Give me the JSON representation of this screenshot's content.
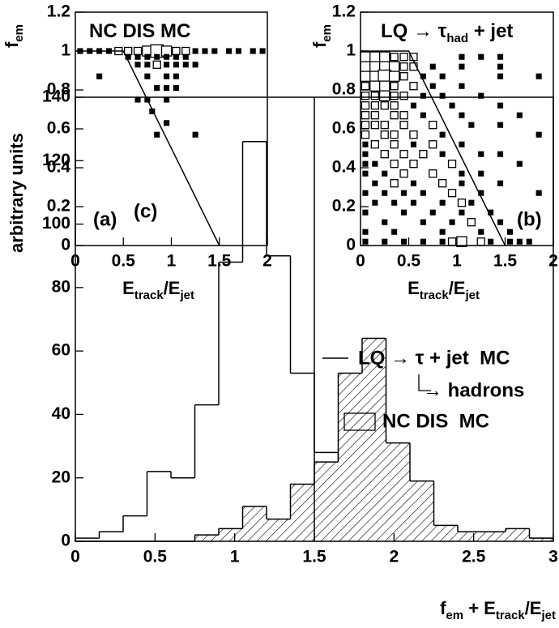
{
  "chart_data": [
    {
      "type": "box2d",
      "title": [
        {
          "text": "NC DIS MC"
        }
      ],
      "panel_label": "(a)",
      "xlabel": [
        {
          "text": "E"
        },
        {
          "text": "track",
          "sub": true
        },
        {
          "text": "/E"
        },
        {
          "text": "jet",
          "sub": true
        }
      ],
      "ylabel": [
        {
          "text": "f"
        },
        {
          "text": "em",
          "sub": true
        }
      ],
      "xlim": [
        0,
        2
      ],
      "ylim": [
        0,
        1.2
      ],
      "xticks": [
        0,
        0.5,
        1,
        1.5,
        2
      ],
      "yticks": [
        0,
        0.2,
        0.4,
        0.6,
        0.8,
        1,
        1.2
      ],
      "color": "#000000",
      "points": [
        [
          0.05,
          1,
          1
        ],
        [
          0.15,
          1,
          1
        ],
        [
          0.25,
          1,
          1
        ],
        [
          0.35,
          1,
          1
        ],
        [
          0.45,
          1,
          2
        ],
        [
          0.55,
          1,
          2
        ],
        [
          0.65,
          1,
          2
        ],
        [
          0.75,
          1,
          3
        ],
        [
          0.85,
          1,
          4
        ],
        [
          0.95,
          1,
          3
        ],
        [
          1.05,
          1,
          2
        ],
        [
          1.15,
          1,
          2
        ],
        [
          1.25,
          1,
          1
        ],
        [
          1.35,
          1,
          1
        ],
        [
          1.45,
          1,
          1
        ],
        [
          1.6,
          1,
          1
        ],
        [
          1.7,
          1,
          1
        ],
        [
          1.85,
          1,
          1
        ],
        [
          1.95,
          1,
          1
        ],
        [
          0.55,
          0.97,
          1
        ],
        [
          0.65,
          0.97,
          1
        ],
        [
          0.75,
          0.97,
          1
        ],
        [
          0.85,
          0.97,
          1
        ],
        [
          0.95,
          0.97,
          1
        ],
        [
          1.05,
          0.97,
          1
        ],
        [
          1.15,
          0.97,
          1
        ],
        [
          0.65,
          0.93,
          1
        ],
        [
          0.75,
          0.93,
          1
        ],
        [
          0.85,
          0.93,
          2
        ],
        [
          0.95,
          0.93,
          1
        ],
        [
          1.05,
          0.93,
          1
        ],
        [
          1.15,
          0.93,
          1
        ],
        [
          1.25,
          0.93,
          1
        ],
        [
          0.25,
          0.87,
          1
        ],
        [
          0.75,
          0.87,
          1
        ],
        [
          0.95,
          0.87,
          1
        ],
        [
          1.05,
          0.87,
          1
        ],
        [
          0.85,
          0.81,
          1
        ],
        [
          0.95,
          0.81,
          1
        ],
        [
          1.05,
          0.81,
          1
        ],
        [
          0.65,
          0.75,
          1
        ],
        [
          0.75,
          0.75,
          1
        ],
        [
          0.95,
          0.75,
          1
        ],
        [
          0.8,
          0.69,
          1
        ],
        [
          0.95,
          0.63,
          1
        ],
        [
          0.85,
          0.57,
          1
        ],
        [
          1.25,
          0.57,
          1
        ]
      ],
      "cut_line": {
        "x": [
          0,
          0.5,
          1.5
        ],
        "y": [
          1,
          1,
          0
        ]
      }
    },
    {
      "type": "box2d",
      "title": [
        {
          "text": "LQ → τ"
        },
        {
          "text": "had",
          "sub": true
        },
        {
          "text": " + jet"
        }
      ],
      "panel_label": "(b)",
      "xlabel": [
        {
          "text": "E"
        },
        {
          "text": "track",
          "sub": true
        },
        {
          "text": "/E"
        },
        {
          "text": "jet",
          "sub": true
        }
      ],
      "ylabel": [
        {
          "text": "f"
        },
        {
          "text": "em",
          "sub": true
        }
      ],
      "xlim": [
        0,
        2
      ],
      "ylim": [
        0,
        1.2
      ],
      "xticks": [
        0,
        0.5,
        1,
        1.5,
        2
      ],
      "yticks": [
        0,
        0.2,
        0.4,
        0.6,
        0.8,
        1,
        1.2
      ],
      "color": "#000000",
      "points": [
        [
          0.05,
          0.97,
          3
        ],
        [
          0.15,
          0.97,
          3
        ],
        [
          0.25,
          0.97,
          3
        ],
        [
          0.35,
          0.97,
          2
        ],
        [
          0.45,
          0.97,
          2
        ],
        [
          0.55,
          0.97,
          2
        ],
        [
          1.05,
          0.97,
          1
        ],
        [
          1.25,
          0.97,
          1
        ],
        [
          1.45,
          0.97,
          1
        ],
        [
          0.05,
          0.92,
          3
        ],
        [
          0.15,
          0.92,
          3
        ],
        [
          0.25,
          0.92,
          3
        ],
        [
          0.35,
          0.92,
          3
        ],
        [
          0.45,
          0.92,
          2
        ],
        [
          0.55,
          0.92,
          2
        ],
        [
          0.75,
          0.92,
          1
        ],
        [
          1.05,
          0.92,
          1
        ],
        [
          1.45,
          0.92,
          1
        ],
        [
          0.05,
          0.87,
          3
        ],
        [
          0.15,
          0.87,
          3
        ],
        [
          0.25,
          0.87,
          4
        ],
        [
          0.35,
          0.87,
          3
        ],
        [
          0.45,
          0.87,
          2
        ],
        [
          0.65,
          0.87,
          1
        ],
        [
          0.85,
          0.87,
          1
        ],
        [
          1.45,
          0.87,
          1
        ],
        [
          1.85,
          0.87,
          1
        ],
        [
          0.05,
          0.82,
          2
        ],
        [
          0.15,
          0.82,
          3
        ],
        [
          0.25,
          0.82,
          3
        ],
        [
          0.35,
          0.82,
          2
        ],
        [
          0.55,
          0.82,
          2
        ],
        [
          0.75,
          0.82,
          1
        ],
        [
          1.05,
          0.82,
          1
        ],
        [
          0.05,
          0.77,
          2
        ],
        [
          0.15,
          0.77,
          2
        ],
        [
          0.25,
          0.77,
          3
        ],
        [
          0.35,
          0.77,
          2
        ],
        [
          0.45,
          0.77,
          2
        ],
        [
          0.65,
          0.77,
          1
        ],
        [
          0.85,
          0.77,
          1
        ],
        [
          1.25,
          0.77,
          1
        ],
        [
          0.05,
          0.72,
          2
        ],
        [
          0.15,
          0.72,
          2
        ],
        [
          0.25,
          0.72,
          2
        ],
        [
          0.35,
          0.72,
          2
        ],
        [
          0.55,
          0.72,
          1
        ],
        [
          0.95,
          0.72,
          1
        ],
        [
          1.45,
          0.72,
          1
        ],
        [
          0.05,
          0.67,
          2
        ],
        [
          0.15,
          0.67,
          2
        ],
        [
          0.35,
          0.67,
          2
        ],
        [
          0.45,
          0.67,
          2
        ],
        [
          0.65,
          0.67,
          1
        ],
        [
          1.05,
          0.67,
          1
        ],
        [
          1.65,
          0.67,
          1
        ],
        [
          0.05,
          0.62,
          2
        ],
        [
          0.15,
          0.62,
          2
        ],
        [
          0.25,
          0.62,
          2
        ],
        [
          0.45,
          0.62,
          2
        ],
        [
          0.75,
          0.62,
          2
        ],
        [
          1.15,
          0.62,
          1
        ],
        [
          1.45,
          0.62,
          1
        ],
        [
          0.05,
          0.57,
          2
        ],
        [
          0.25,
          0.57,
          2
        ],
        [
          0.35,
          0.57,
          2
        ],
        [
          0.55,
          0.57,
          2
        ],
        [
          0.85,
          0.57,
          1
        ],
        [
          1.85,
          0.57,
          1
        ],
        [
          0.05,
          0.52,
          1
        ],
        [
          0.15,
          0.52,
          2
        ],
        [
          0.35,
          0.52,
          2
        ],
        [
          0.55,
          0.52,
          1
        ],
        [
          0.75,
          0.52,
          2
        ],
        [
          1.05,
          0.52,
          1
        ],
        [
          0.05,
          0.47,
          1
        ],
        [
          0.25,
          0.47,
          2
        ],
        [
          0.45,
          0.47,
          2
        ],
        [
          0.65,
          0.47,
          2
        ],
        [
          0.85,
          0.47,
          1
        ],
        [
          1.25,
          0.47,
          1
        ],
        [
          1.45,
          0.47,
          1
        ],
        [
          0.05,
          0.42,
          1
        ],
        [
          0.15,
          0.42,
          1
        ],
        [
          0.35,
          0.42,
          2
        ],
        [
          0.55,
          0.42,
          2
        ],
        [
          0.95,
          0.42,
          2
        ],
        [
          1.65,
          0.42,
          1
        ],
        [
          0.05,
          0.37,
          1
        ],
        [
          0.25,
          0.37,
          1
        ],
        [
          0.45,
          0.37,
          2
        ],
        [
          0.75,
          0.37,
          2
        ],
        [
          1.05,
          0.37,
          1
        ],
        [
          1.25,
          0.37,
          1
        ],
        [
          0.15,
          0.32,
          1
        ],
        [
          0.35,
          0.32,
          2
        ],
        [
          0.55,
          0.32,
          1
        ],
        [
          0.85,
          0.32,
          2
        ],
        [
          1.05,
          0.32,
          1
        ],
        [
          1.45,
          0.32,
          1
        ],
        [
          0.05,
          0.27,
          1
        ],
        [
          0.25,
          0.27,
          1
        ],
        [
          0.45,
          0.27,
          1
        ],
        [
          0.65,
          0.27,
          1
        ],
        [
          0.95,
          0.27,
          2
        ],
        [
          1.25,
          0.27,
          1
        ],
        [
          1.85,
          0.27,
          1
        ],
        [
          0.15,
          0.22,
          1
        ],
        [
          0.35,
          0.22,
          1
        ],
        [
          0.55,
          0.22,
          1
        ],
        [
          0.85,
          0.22,
          1
        ],
        [
          1.05,
          0.22,
          2
        ],
        [
          1.15,
          0.22,
          1
        ],
        [
          0.05,
          0.17,
          1
        ],
        [
          0.45,
          0.17,
          1
        ],
        [
          0.75,
          0.17,
          1
        ],
        [
          1.05,
          0.17,
          1
        ],
        [
          1.35,
          0.17,
          1
        ],
        [
          0.25,
          0.12,
          1
        ],
        [
          0.65,
          0.12,
          1
        ],
        [
          0.95,
          0.12,
          1
        ],
        [
          1.15,
          0.12,
          2
        ],
        [
          1.45,
          0.12,
          1
        ],
        [
          0.05,
          0.07,
          1
        ],
        [
          0.35,
          0.07,
          1
        ],
        [
          0.85,
          0.07,
          1
        ],
        [
          1.25,
          0.07,
          1
        ],
        [
          1.55,
          0.07,
          1
        ],
        [
          0.05,
          0.02,
          1
        ],
        [
          0.25,
          0.02,
          1
        ],
        [
          0.45,
          0.02,
          1
        ],
        [
          0.65,
          0.02,
          1
        ],
        [
          0.85,
          0.02,
          1
        ],
        [
          0.95,
          0.02,
          2
        ],
        [
          1.05,
          0.02,
          3
        ],
        [
          1.25,
          0.02,
          2
        ],
        [
          1.35,
          0.02,
          1
        ],
        [
          1.55,
          0.02,
          1
        ],
        [
          1.65,
          0.02,
          1
        ],
        [
          1.75,
          0.02,
          1
        ]
      ],
      "cut_line": {
        "x": [
          0,
          0.5,
          1.5
        ],
        "y": [
          1,
          1,
          0
        ]
      }
    },
    {
      "type": "histogram",
      "panel_label": "(c)",
      "xlabel": [
        {
          "text": "f"
        },
        {
          "text": "em",
          "sub": true
        },
        {
          "text": " + E"
        },
        {
          "text": "track",
          "sub": true
        },
        {
          "text": "/E"
        },
        {
          "text": "jet",
          "sub": true
        }
      ],
      "ylabel": [
        {
          "text": "arbitrary units"
        }
      ],
      "xlim": [
        0,
        3
      ],
      "ylim": [
        0,
        140
      ],
      "xticks": [
        0,
        0.5,
        1,
        1.5,
        2,
        2.5,
        3
      ],
      "yticks": [
        0,
        20,
        40,
        60,
        80,
        100,
        120,
        140
      ],
      "bins": [
        0,
        0.15,
        0.3,
        0.45,
        0.6,
        0.75,
        0.9,
        1.05,
        1.2,
        1.35,
        1.5,
        1.65,
        1.8,
        1.95,
        2.1,
        2.25,
        2.4,
        2.55,
        2.7,
        2.85,
        3
      ],
      "cut_x": 1.5,
      "annotation": "→ hadrons",
      "series": [
        {
          "name": "LQ → τ + jet  MC",
          "color": "#000000",
          "fill": "none",
          "values": [
            1,
            3,
            8,
            22,
            20,
            43,
            88,
            126,
            90,
            53,
            28,
            20,
            14,
            9,
            4,
            3,
            2,
            1,
            1,
            1
          ]
        },
        {
          "name": "NC DIS  MC",
          "color": "#000000",
          "fill": "hatch",
          "values": [
            0,
            0,
            0,
            0,
            0,
            2,
            4,
            11,
            7,
            18,
            25,
            53,
            64,
            31,
            19,
            5,
            3,
            3,
            4,
            1
          ]
        }
      ]
    }
  ]
}
